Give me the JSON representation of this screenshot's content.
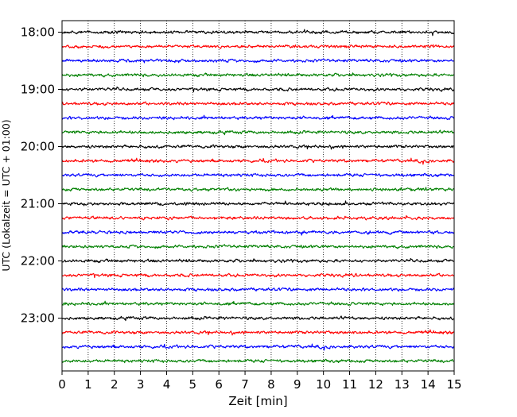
{
  "chart_data": {
    "type": "line",
    "title": "",
    "xlabel": "Zeit  [min]",
    "ylabel": "UTC (Lokalzeit = UTC + 01:00)",
    "xlim": [
      0,
      15
    ],
    "x_ticks": [
      "0",
      "1",
      "2",
      "3",
      "4",
      "5",
      "6",
      "7",
      "8",
      "9",
      "10",
      "11",
      "12",
      "13",
      "14",
      "15"
    ],
    "y_ticks": [
      "18:00",
      "19:00",
      "20:00",
      "21:00",
      "22:00",
      "23:00"
    ],
    "y_start_time": "18:00",
    "y_end_time": "24:00",
    "trace_interval_min": 15,
    "traces_per_hour": 4,
    "trace_colors": [
      "#000000",
      "#ff0000",
      "#0000ff",
      "#008000"
    ],
    "grid": "vertical-dotted",
    "legend": "none"
  }
}
